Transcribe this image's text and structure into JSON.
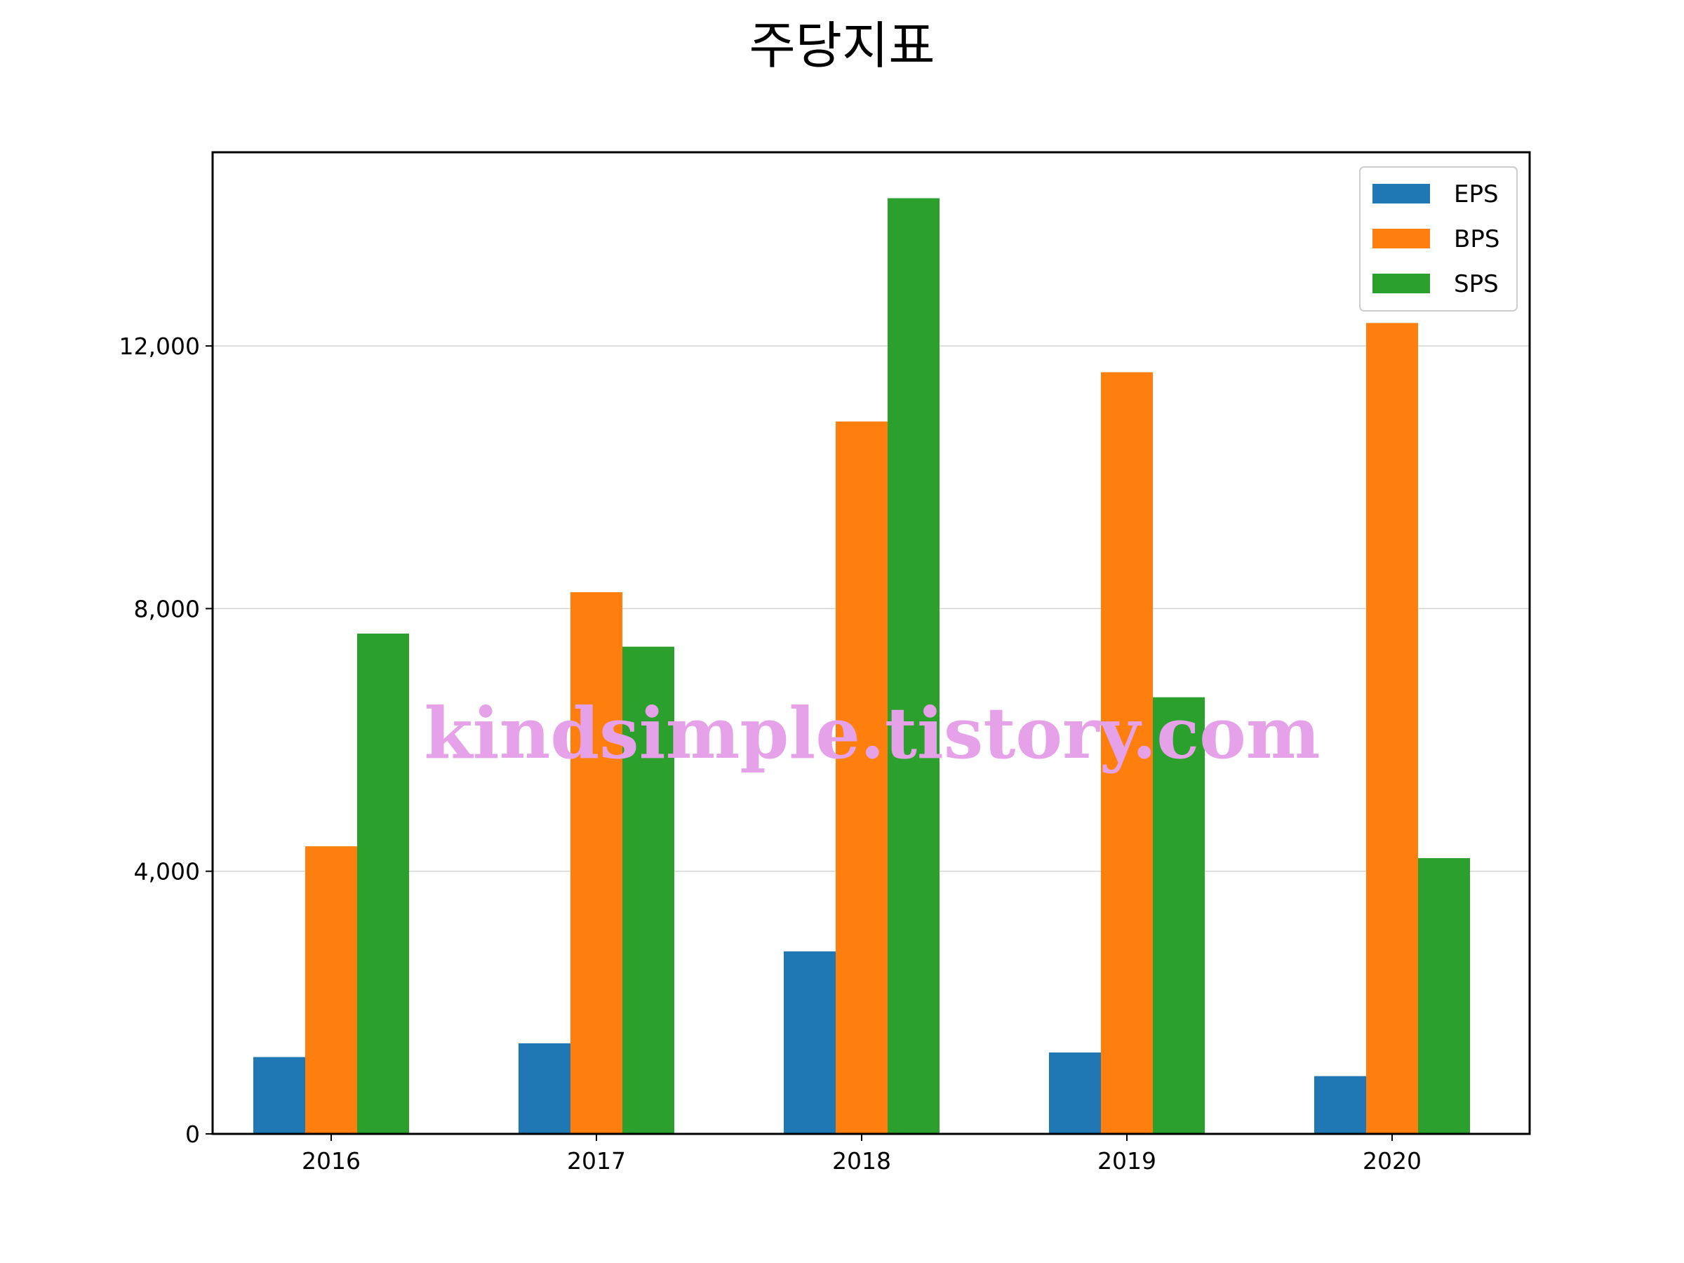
{
  "chart_data": {
    "type": "bar",
    "title": "주당지표",
    "xlabel": "",
    "ylabel": "",
    "categories": [
      "2016",
      "2017",
      "2018",
      "2019",
      "2020"
    ],
    "series": [
      {
        "name": "EPS",
        "color": "#1f77b4",
        "values": [
          1170,
          1380,
          2780,
          1240,
          880
        ]
      },
      {
        "name": "BPS",
        "color": "#ff7f0e",
        "values": [
          4380,
          8250,
          10850,
          11600,
          12350
        ]
      },
      {
        "name": "SPS",
        "color": "#2ca02c",
        "values": [
          7620,
          7420,
          14250,
          6650,
          4200
        ]
      }
    ],
    "ylim": [
      0,
      14950
    ],
    "yticks": [
      0,
      4000,
      8000,
      12000
    ],
    "ytick_labels": [
      "0",
      "4,000",
      "8,000",
      "12,000"
    ],
    "grid": {
      "y": true,
      "x": false,
      "color": "#d3d3d3"
    },
    "legend": {
      "position": "top-right",
      "entries": [
        "EPS",
        "BPS",
        "SPS"
      ]
    },
    "watermark": "kindsimple.tistory.com"
  }
}
